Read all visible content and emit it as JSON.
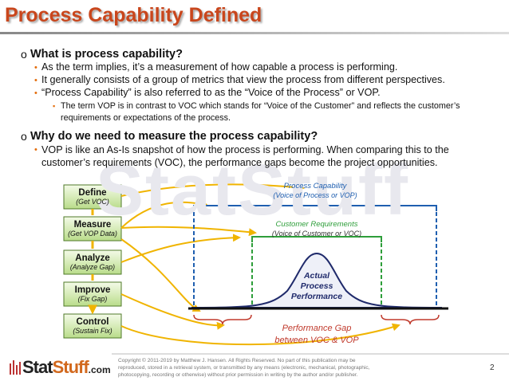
{
  "title": "Process Capability Defined",
  "sections": [
    {
      "marker": "o",
      "heading": "What is process capability?",
      "bullets": [
        {
          "marker": "•",
          "text": "As the term implies, it’s a measurement of how capable a process is performing."
        },
        {
          "marker": "•",
          "text": "It generally consists of a group of metrics that view the process from different perspectives."
        },
        {
          "marker": "•",
          "text": "“Process Capability” is also referred to as the “Voice of the Process” or VOP.",
          "sub": {
            "marker": "▪",
            "text": "The term VOP is in contrast to VOC which stands for “Voice of the Customer” and reflects the customer’s requirements or expectations of the process."
          }
        }
      ]
    },
    {
      "marker": "o",
      "heading": "Why do we need to measure the process capability?",
      "bullets": [
        {
          "marker": "•",
          "text": "VOP is like an As-Is snapshot of how the process is performing.  When comparing this to the customer’s requirements (VOC), the performance gaps become the project opportunities."
        }
      ]
    }
  ],
  "watermark": "StatStuff",
  "diagram": {
    "steps": [
      {
        "name": "Define",
        "sub": "(Get VOC)"
      },
      {
        "name": "Measure",
        "sub": "(Get VOP Data)"
      },
      {
        "name": "Analyze",
        "sub": "(Analyze Gap)"
      },
      {
        "name": "Improve",
        "sub": "(Fix Gap)"
      },
      {
        "name": "Control",
        "sub": "(Sustain Fix)"
      }
    ],
    "capability": {
      "title": "Process Capability",
      "sub": "(Voice of Process or VOP)"
    },
    "requirements": {
      "title": "Customer Requirements",
      "sub": "(Voice of Customer or VOC)"
    },
    "performance": [
      "Actual",
      "Process",
      "Performance"
    ],
    "gap": {
      "title": "Performance Gap",
      "sub": "between VOC & VOP"
    }
  },
  "footer": {
    "logo": [
      "Stat",
      "Stuff",
      ".com"
    ],
    "copyright": [
      "Copyright © 2011-2019 by Matthew  J. Hansen.  All Rights Reserved.  No part of this publication may be",
      "reproduced, stored in a retrieval system, or transmitted by any means (electronic, mechanical, photographic,",
      "photocopying, recording or otherwise) without prior permission in writing by the author and/or publisher."
    ],
    "page": "2"
  }
}
